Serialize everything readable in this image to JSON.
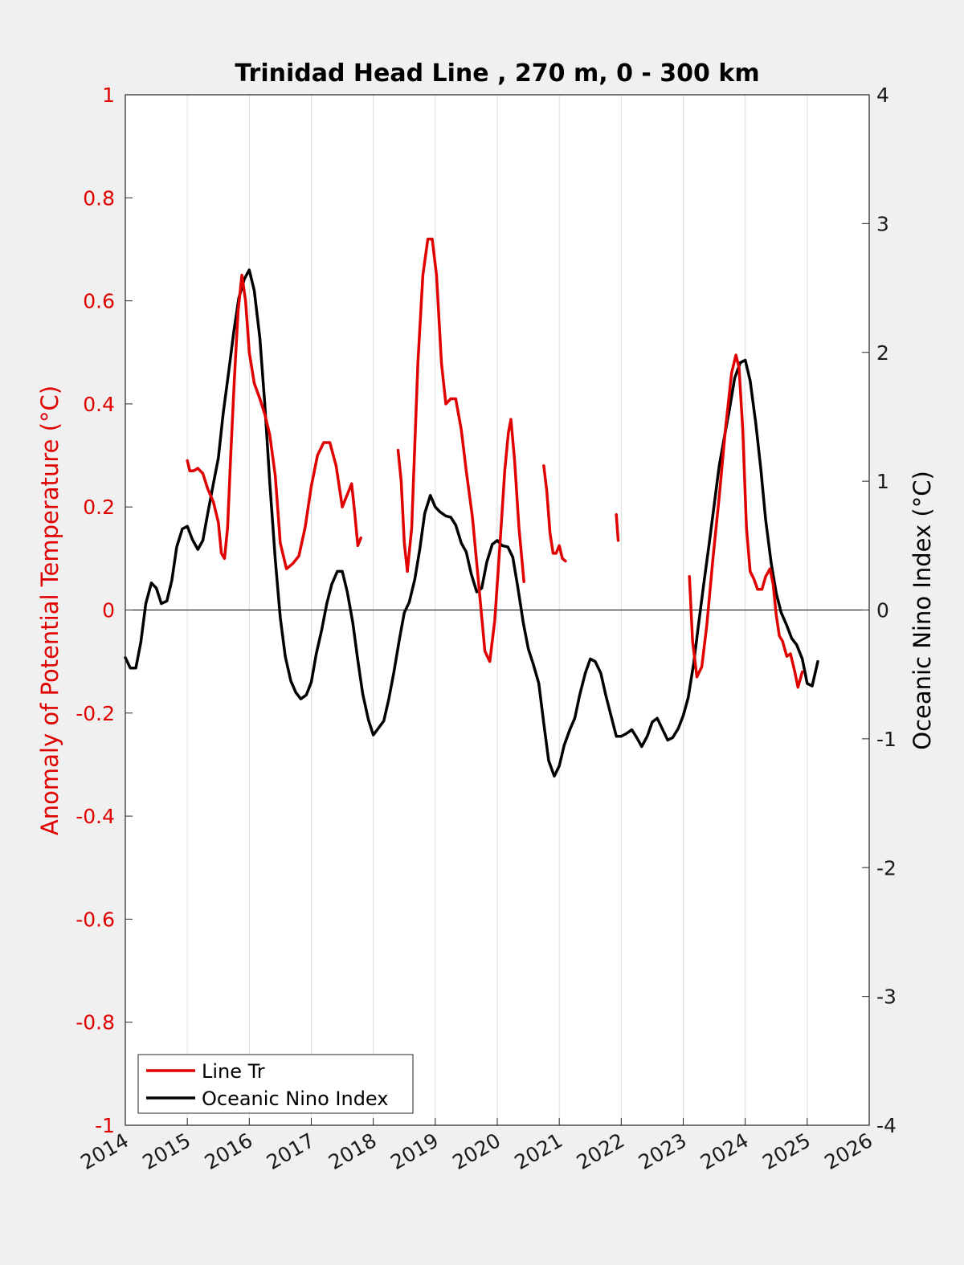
{
  "chart_data": {
    "type": "line",
    "title": "Trinidad Head Line , 270 m, 0 - 300 km",
    "ylabel": "Anomaly of Potential Temperature (°C)",
    "y2label": "Oceanic Nino Index (°C)",
    "xlim": [
      2014,
      2026
    ],
    "ylim": [
      -1,
      1
    ],
    "y2lim": [
      -4,
      4
    ],
    "x_ticks": [
      "2014",
      "2015",
      "2016",
      "2017",
      "2018",
      "2019",
      "2020",
      "2021",
      "2022",
      "2023",
      "2024",
      "2025",
      "2026"
    ],
    "y_ticks": [
      "-1",
      "-0.8",
      "-0.6",
      "-0.4",
      "-0.2",
      "0",
      "0.2",
      "0.4",
      "0.6",
      "0.8",
      "1"
    ],
    "y2_ticks": [
      "-4",
      "-3",
      "-2",
      "-1",
      "0",
      "1",
      "2",
      "3",
      "4"
    ],
    "grid": "vertical",
    "legend_position": "bottom-left",
    "colors": {
      "line_tr": "#e00000",
      "oni": "#000000",
      "zero_line": "#000000",
      "grid": "#dddddd"
    },
    "series": [
      {
        "name": "Line Tr",
        "axis": "left",
        "segments": [
          [
            [
              2015.0,
              0.29
            ],
            [
              2015.04,
              0.27
            ],
            [
              2015.1,
              0.27
            ],
            [
              2015.17,
              0.275
            ],
            [
              2015.25,
              0.265
            ],
            [
              2015.33,
              0.235
            ],
            [
              2015.42,
              0.21
            ],
            [
              2015.5,
              0.17
            ],
            [
              2015.55,
              0.11
            ],
            [
              2015.6,
              0.1
            ],
            [
              2015.65,
              0.16
            ],
            [
              2015.7,
              0.3
            ],
            [
              2015.76,
              0.45
            ],
            [
              2015.82,
              0.58
            ],
            [
              2015.88,
              0.65
            ],
            [
              2015.94,
              0.6
            ],
            [
              2016.0,
              0.5
            ],
            [
              2016.08,
              0.44
            ],
            [
              2016.17,
              0.41
            ],
            [
              2016.25,
              0.38
            ],
            [
              2016.33,
              0.34
            ],
            [
              2016.42,
              0.26
            ],
            [
              2016.5,
              0.13
            ],
            [
              2016.6,
              0.08
            ],
            [
              2016.7,
              0.09
            ],
            [
              2016.8,
              0.105
            ],
            [
              2016.9,
              0.16
            ],
            [
              2017.0,
              0.24
            ],
            [
              2017.1,
              0.3
            ],
            [
              2017.2,
              0.325
            ],
            [
              2017.3,
              0.325
            ],
            [
              2017.4,
              0.28
            ],
            [
              2017.5,
              0.2
            ],
            [
              2017.6,
              0.23
            ],
            [
              2017.65,
              0.245
            ],
            [
              2017.7,
              0.19
            ],
            [
              2017.75,
              0.125
            ],
            [
              2017.8,
              0.14
            ]
          ],
          [
            [
              2018.4,
              0.31
            ],
            [
              2018.45,
              0.25
            ],
            [
              2018.5,
              0.13
            ],
            [
              2018.55,
              0.075
            ],
            [
              2018.62,
              0.16
            ],
            [
              2018.72,
              0.48
            ],
            [
              2018.8,
              0.65
            ],
            [
              2018.88,
              0.72
            ],
            [
              2018.95,
              0.72
            ],
            [
              2019.02,
              0.65
            ],
            [
              2019.1,
              0.48
            ],
            [
              2019.17,
              0.4
            ],
            [
              2019.25,
              0.41
            ],
            [
              2019.33,
              0.41
            ],
            [
              2019.42,
              0.35
            ],
            [
              2019.5,
              0.27
            ],
            [
              2019.6,
              0.18
            ],
            [
              2019.7,
              0.05
            ],
            [
              2019.8,
              -0.08
            ],
            [
              2019.88,
              -0.1
            ],
            [
              2019.96,
              -0.02
            ],
            [
              2020.05,
              0.14
            ],
            [
              2020.12,
              0.27
            ],
            [
              2020.18,
              0.345
            ],
            [
              2020.22,
              0.37
            ],
            [
              2020.28,
              0.29
            ],
            [
              2020.35,
              0.16
            ],
            [
              2020.43,
              0.055
            ]
          ],
          [
            [
              2020.75,
              0.28
            ],
            [
              2020.8,
              0.23
            ],
            [
              2020.85,
              0.15
            ],
            [
              2020.9,
              0.11
            ],
            [
              2020.95,
              0.11
            ],
            [
              2021.0,
              0.125
            ],
            [
              2021.05,
              0.1
            ],
            [
              2021.1,
              0.095
            ]
          ],
          [
            [
              2021.92,
              0.185
            ],
            [
              2021.95,
              0.135
            ]
          ],
          [
            [
              2023.1,
              0.065
            ],
            [
              2023.15,
              -0.06
            ],
            [
              2023.22,
              -0.13
            ],
            [
              2023.3,
              -0.11
            ],
            [
              2023.38,
              -0.03
            ],
            [
              2023.48,
              0.1
            ],
            [
              2023.58,
              0.22
            ],
            [
              2023.68,
              0.35
            ],
            [
              2023.78,
              0.46
            ],
            [
              2023.85,
              0.495
            ],
            [
              2023.9,
              0.47
            ],
            [
              2023.96,
              0.35
            ],
            [
              2024.02,
              0.16
            ],
            [
              2024.08,
              0.075
            ],
            [
              2024.14,
              0.06
            ],
            [
              2024.2,
              0.04
            ],
            [
              2024.27,
              0.04
            ],
            [
              2024.33,
              0.065
            ],
            [
              2024.4,
              0.08
            ],
            [
              2024.45,
              0.05
            ],
            [
              2024.5,
              -0.01
            ],
            [
              2024.55,
              -0.05
            ],
            [
              2024.6,
              -0.06
            ],
            [
              2024.67,
              -0.09
            ],
            [
              2024.73,
              -0.085
            ],
            [
              2024.8,
              -0.12
            ],
            [
              2024.85,
              -0.15
            ],
            [
              2024.92,
              -0.12
            ]
          ]
        ]
      },
      {
        "name": "Oceanic Nino Index",
        "axis": "right",
        "segments": [
          [
            [
              2014.0,
              -0.37
            ],
            [
              2014.08,
              -0.45
            ],
            [
              2014.17,
              -0.45
            ],
            [
              2014.25,
              -0.25
            ],
            [
              2014.33,
              0.05
            ],
            [
              2014.42,
              0.21
            ],
            [
              2014.5,
              0.17
            ],
            [
              2014.58,
              0.05
            ],
            [
              2014.67,
              0.07
            ],
            [
              2014.75,
              0.23
            ],
            [
              2014.83,
              0.49
            ],
            [
              2014.92,
              0.63
            ],
            [
              2015.0,
              0.65
            ],
            [
              2015.08,
              0.55
            ],
            [
              2015.17,
              0.47
            ],
            [
              2015.25,
              0.54
            ],
            [
              2015.33,
              0.75
            ],
            [
              2015.42,
              0.98
            ],
            [
              2015.5,
              1.18
            ],
            [
              2015.58,
              1.53
            ],
            [
              2015.67,
              1.86
            ],
            [
              2015.75,
              2.16
            ],
            [
              2015.83,
              2.42
            ],
            [
              2015.92,
              2.57
            ],
            [
              2016.0,
              2.64
            ],
            [
              2016.08,
              2.48
            ],
            [
              2016.17,
              2.11
            ],
            [
              2016.25,
              1.6
            ],
            [
              2016.33,
              0.99
            ],
            [
              2016.42,
              0.39
            ],
            [
              2016.5,
              -0.06
            ],
            [
              2016.58,
              -0.36
            ],
            [
              2016.67,
              -0.55
            ],
            [
              2016.75,
              -0.64
            ],
            [
              2016.83,
              -0.69
            ],
            [
              2016.92,
              -0.66
            ],
            [
              2017.0,
              -0.56
            ],
            [
              2017.08,
              -0.34
            ],
            [
              2017.17,
              -0.15
            ],
            [
              2017.25,
              0.05
            ],
            [
              2017.33,
              0.2
            ],
            [
              2017.42,
              0.3
            ],
            [
              2017.5,
              0.3
            ],
            [
              2017.58,
              0.14
            ],
            [
              2017.67,
              -0.1
            ],
            [
              2017.75,
              -0.39
            ],
            [
              2017.83,
              -0.65
            ],
            [
              2017.92,
              -0.85
            ],
            [
              2018.0,
              -0.97
            ],
            [
              2018.08,
              -0.92
            ],
            [
              2018.17,
              -0.86
            ],
            [
              2018.25,
              -0.69
            ],
            [
              2018.33,
              -0.49
            ],
            [
              2018.42,
              -0.23
            ],
            [
              2018.5,
              -0.02
            ],
            [
              2018.58,
              0.06
            ],
            [
              2018.67,
              0.24
            ],
            [
              2018.75,
              0.47
            ],
            [
              2018.83,
              0.75
            ],
            [
              2018.92,
              0.89
            ],
            [
              2019.0,
              0.8
            ],
            [
              2019.08,
              0.76
            ],
            [
              2019.17,
              0.73
            ],
            [
              2019.25,
              0.72
            ],
            [
              2019.33,
              0.66
            ],
            [
              2019.42,
              0.52
            ],
            [
              2019.5,
              0.45
            ],
            [
              2019.58,
              0.28
            ],
            [
              2019.67,
              0.14
            ],
            [
              2019.75,
              0.17
            ],
            [
              2019.83,
              0.37
            ],
            [
              2019.92,
              0.51
            ],
            [
              2020.0,
              0.54
            ],
            [
              2020.08,
              0.5
            ],
            [
              2020.17,
              0.49
            ],
            [
              2020.25,
              0.41
            ],
            [
              2020.33,
              0.18
            ],
            [
              2020.42,
              -0.1
            ],
            [
              2020.5,
              -0.3
            ],
            [
              2020.58,
              -0.42
            ],
            [
              2020.67,
              -0.57
            ],
            [
              2020.75,
              -0.88
            ],
            [
              2020.83,
              -1.17
            ],
            [
              2020.92,
              -1.29
            ],
            [
              2021.0,
              -1.21
            ],
            [
              2021.08,
              -1.05
            ],
            [
              2021.17,
              -0.93
            ],
            [
              2021.25,
              -0.84
            ],
            [
              2021.33,
              -0.66
            ],
            [
              2021.42,
              -0.49
            ],
            [
              2021.5,
              -0.38
            ],
            [
              2021.58,
              -0.4
            ],
            [
              2021.67,
              -0.49
            ],
            [
              2021.75,
              -0.66
            ],
            [
              2021.83,
              -0.81
            ],
            [
              2021.92,
              -0.98
            ],
            [
              2022.0,
              -0.98
            ],
            [
              2022.08,
              -0.96
            ],
            [
              2022.17,
              -0.93
            ],
            [
              2022.25,
              -0.99
            ],
            [
              2022.33,
              -1.06
            ],
            [
              2022.42,
              -0.98
            ],
            [
              2022.5,
              -0.87
            ],
            [
              2022.58,
              -0.84
            ],
            [
              2022.67,
              -0.93
            ],
            [
              2022.75,
              -1.01
            ],
            [
              2022.83,
              -0.99
            ],
            [
              2022.92,
              -0.92
            ],
            [
              2023.0,
              -0.82
            ],
            [
              2023.08,
              -0.68
            ],
            [
              2023.17,
              -0.41
            ],
            [
              2023.25,
              -0.1
            ],
            [
              2023.33,
              0.2
            ],
            [
              2023.42,
              0.52
            ],
            [
              2023.5,
              0.82
            ],
            [
              2023.58,
              1.12
            ],
            [
              2023.67,
              1.36
            ],
            [
              2023.75,
              1.57
            ],
            [
              2023.83,
              1.8
            ],
            [
              2023.92,
              1.92
            ],
            [
              2024.0,
              1.94
            ],
            [
              2024.08,
              1.78
            ],
            [
              2024.17,
              1.45
            ],
            [
              2024.25,
              1.1
            ],
            [
              2024.33,
              0.7
            ],
            [
              2024.42,
              0.36
            ],
            [
              2024.5,
              0.13
            ],
            [
              2024.58,
              -0.02
            ],
            [
              2024.67,
              -0.12
            ],
            [
              2024.75,
              -0.22
            ],
            [
              2024.83,
              -0.27
            ],
            [
              2024.92,
              -0.38
            ],
            [
              2025.0,
              -0.57
            ],
            [
              2025.08,
              -0.59
            ],
            [
              2025.17,
              -0.4
            ]
          ]
        ]
      }
    ]
  }
}
